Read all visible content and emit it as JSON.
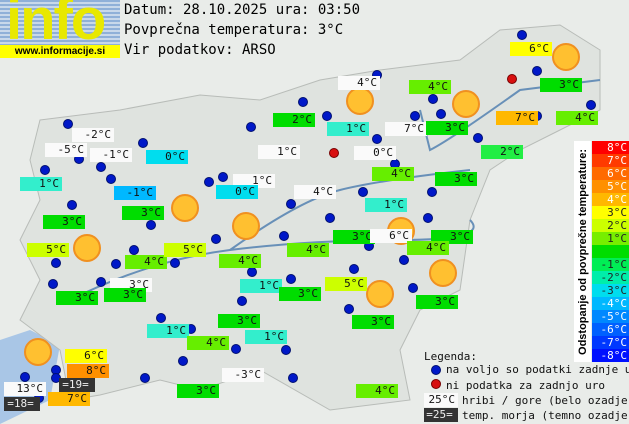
{
  "header": {
    "logo_text": "info",
    "logo_url": "www.informacije.si",
    "date_line": "Datum: 28.10.2025 ura: 03:50",
    "avg_line": "Povprečna temperatura: 3°C",
    "source_line": "Vir podatkov: ARSO"
  },
  "labels": [
    "-2°C",
    "-5°C",
    "-1°C",
    "1°C",
    "0°C",
    "-1°C",
    "3°C",
    "3°C",
    "1°C",
    "1°C",
    "0°C",
    "4°C",
    "5°C",
    "4°C",
    "5°C",
    "4°C",
    "3°C",
    "3°C",
    "3°C",
    "4°C",
    "1°C",
    "3°C",
    "3°C",
    "1°C",
    "4°C",
    "1°C",
    "4°C",
    "2°C",
    "1°C",
    "4°C",
    "7°C",
    "3°C",
    "0°C",
    "6°C",
    "3°C",
    "7°C",
    "4°C",
    "2°C",
    "4°C",
    "3°C",
    "1°C",
    "3°C",
    "6°C",
    "3°C",
    "4°C",
    "5°C",
    "3°C",
    "3°C",
    "6°C",
    "8°C",
    "=19=",
    "13°C",
    "=18=",
    "7°C",
    "3°C",
    "-3°C",
    "4°C"
  ],
  "scale": {
    "title": "Odstopanje od povprečne temperature:",
    "steps": [
      "8°C",
      "7°C",
      "6°C",
      "5°C",
      "4°C",
      "3°C",
      "2°C",
      "1°C",
      "",
      "-1°C",
      "-2°C",
      "-3°C",
      "-4°C",
      "-5°C",
      "-6°C",
      "-7°C",
      "-8°C"
    ],
    "colors": [
      "#ff0000",
      "#ff3a00",
      "#ff6a00",
      "#ff9000",
      "#ffb800",
      "#ffff00",
      "#ccff00",
      "#77ee00",
      "#00dd00",
      "#00ee55",
      "#00eeaa",
      "#00ddee",
      "#00b8ff",
      "#0088ff",
      "#0060ff",
      "#0038ff",
      "#0010ff"
    ]
  },
  "legend": {
    "title": "Legenda:",
    "available": "na voljo so podatki zadnje ure",
    "missing": "ni podatka za zadnjo uro",
    "mountain_sample": "25°C",
    "mountain": "hribi / gore (belo ozadje)",
    "sea_sample": "=25=",
    "sea": "temp. morja (temno ozadje)"
  },
  "colors": {
    "station": "#0018c8",
    "missing": "#d81010",
    "sun": "#ffc030"
  }
}
